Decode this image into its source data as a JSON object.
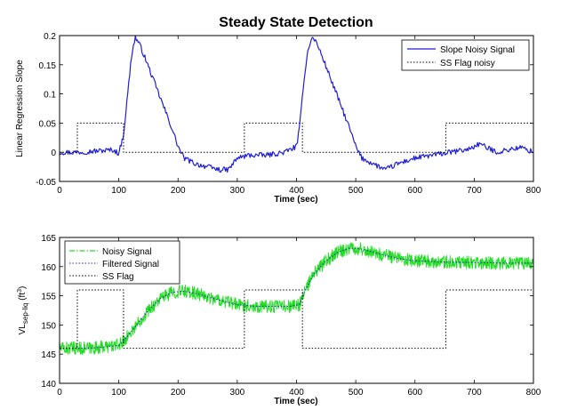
{
  "figure": {
    "title": "Steady State Detection"
  },
  "chart_data": [
    {
      "type": "line",
      "title": "Steady State Detection",
      "xlabel": "Time (sec)",
      "ylabel": "Linear Regression Slope",
      "xlim": [
        0,
        800
      ],
      "ylim": [
        -0.05,
        0.2
      ],
      "x_ticks": [
        "0",
        "100",
        "200",
        "300",
        "400",
        "500",
        "600",
        "700",
        "800"
      ],
      "y_ticks": [
        "-0.05",
        "0",
        "0.05",
        "0.1",
        "0.15",
        "0.2"
      ],
      "legend_position": "top-right",
      "grid": false,
      "series": [
        {
          "name": "Slope Noisy Signal",
          "color": "#1f1fd6",
          "style": "solid",
          "noisy": true,
          "x": [
            0,
            30,
            60,
            90,
            100,
            108,
            115,
            122,
            128,
            135,
            145,
            160,
            175,
            190,
            200,
            210,
            230,
            250,
            270,
            285,
            300,
            320,
            350,
            380,
            400,
            405,
            412,
            420,
            428,
            435,
            445,
            460,
            475,
            490,
            500,
            510,
            530,
            550,
            570,
            600,
            630,
            660,
            690,
            710,
            720,
            740,
            760,
            780,
            800
          ],
          "y": [
            0,
            0,
            0.002,
            0.004,
            -0.002,
            0.03,
            0.1,
            0.17,
            0.197,
            0.185,
            0.16,
            0.12,
            0.08,
            0.04,
            0.01,
            -0.01,
            -0.02,
            -0.025,
            -0.03,
            -0.03,
            -0.01,
            -0.005,
            -0.005,
            0,
            0.01,
            0.04,
            0.12,
            0.18,
            0.198,
            0.185,
            0.16,
            0.12,
            0.08,
            0.04,
            0.01,
            -0.01,
            -0.02,
            -0.03,
            -0.02,
            -0.01,
            -0.005,
            0,
            0.005,
            0.015,
            0.008,
            0,
            0.005,
            0.008,
            0
          ]
        },
        {
          "name": "SS Flag noisy",
          "color": "#000000",
          "style": "dotted",
          "noisy": false,
          "x": [
            0,
            30,
            30,
            108,
            108,
            312,
            312,
            410,
            410,
            652,
            652,
            800
          ],
          "y": [
            0,
            0,
            0.05,
            0.05,
            0,
            0,
            0.05,
            0.05,
            0,
            0,
            0.05,
            0.05
          ]
        }
      ]
    },
    {
      "type": "line",
      "title": "",
      "xlabel": "Time (sec)",
      "ylabel": "VL",
      "ylabel_subscript": "sep-liq",
      "ylabel_unit": "(ft",
      "ylabel_unit_sup": "3",
      "ylabel_unit_close": ")",
      "xlim": [
        0,
        800
      ],
      "ylim": [
        140,
        165
      ],
      "x_ticks": [
        "0",
        "100",
        "200",
        "300",
        "400",
        "500",
        "600",
        "700",
        "800"
      ],
      "y_ticks": [
        "140",
        "145",
        "150",
        "155",
        "160",
        "165"
      ],
      "legend_position": "top-left",
      "grid": false,
      "series": [
        {
          "name": "Noisy Signal",
          "color": "#22dd22",
          "style": "dashdot",
          "noisy": true,
          "x": [
            0,
            50,
            100,
            110,
            130,
            150,
            170,
            190,
            210,
            230,
            250,
            280,
            300,
            330,
            360,
            390,
            405,
            415,
            430,
            450,
            470,
            490,
            510,
            540,
            570,
            600,
            650,
            700,
            750,
            800
          ],
          "y": [
            146,
            146,
            146.5,
            147.5,
            150,
            152.5,
            154.5,
            155.6,
            155.8,
            155.4,
            154.8,
            154,
            153.5,
            153.2,
            153.2,
            153.2,
            153.5,
            156,
            158.8,
            161,
            162.5,
            163.2,
            163,
            162.2,
            161.4,
            161,
            160.8,
            160.7,
            160.6,
            160.6
          ]
        },
        {
          "name": "Filtered Signal",
          "color": "#2222cc",
          "style": "dotted",
          "noisy": false,
          "x": [
            0,
            50,
            100,
            110,
            130,
            150,
            170,
            190,
            210,
            230,
            250,
            280,
            300,
            330,
            360,
            390,
            405,
            415,
            430,
            450,
            470,
            490,
            510,
            540,
            570,
            600,
            650,
            700,
            750,
            800
          ],
          "y": [
            146,
            146,
            146.5,
            147.5,
            150,
            152.5,
            154.5,
            155.6,
            155.8,
            155.4,
            154.8,
            154,
            153.5,
            153.2,
            153.2,
            153.2,
            153.5,
            156,
            158.8,
            161,
            162.5,
            163.2,
            163,
            162.2,
            161.4,
            161,
            160.8,
            160.7,
            160.6,
            160.6
          ]
        },
        {
          "name": "SS Flag",
          "color": "#000000",
          "style": "dotted",
          "noisy": false,
          "x": [
            0,
            30,
            30,
            108,
            108,
            312,
            312,
            410,
            410,
            652,
            652,
            800
          ],
          "y": [
            146,
            146,
            156,
            156,
            146,
            146,
            156,
            156,
            146,
            146,
            156,
            156
          ]
        }
      ]
    }
  ]
}
